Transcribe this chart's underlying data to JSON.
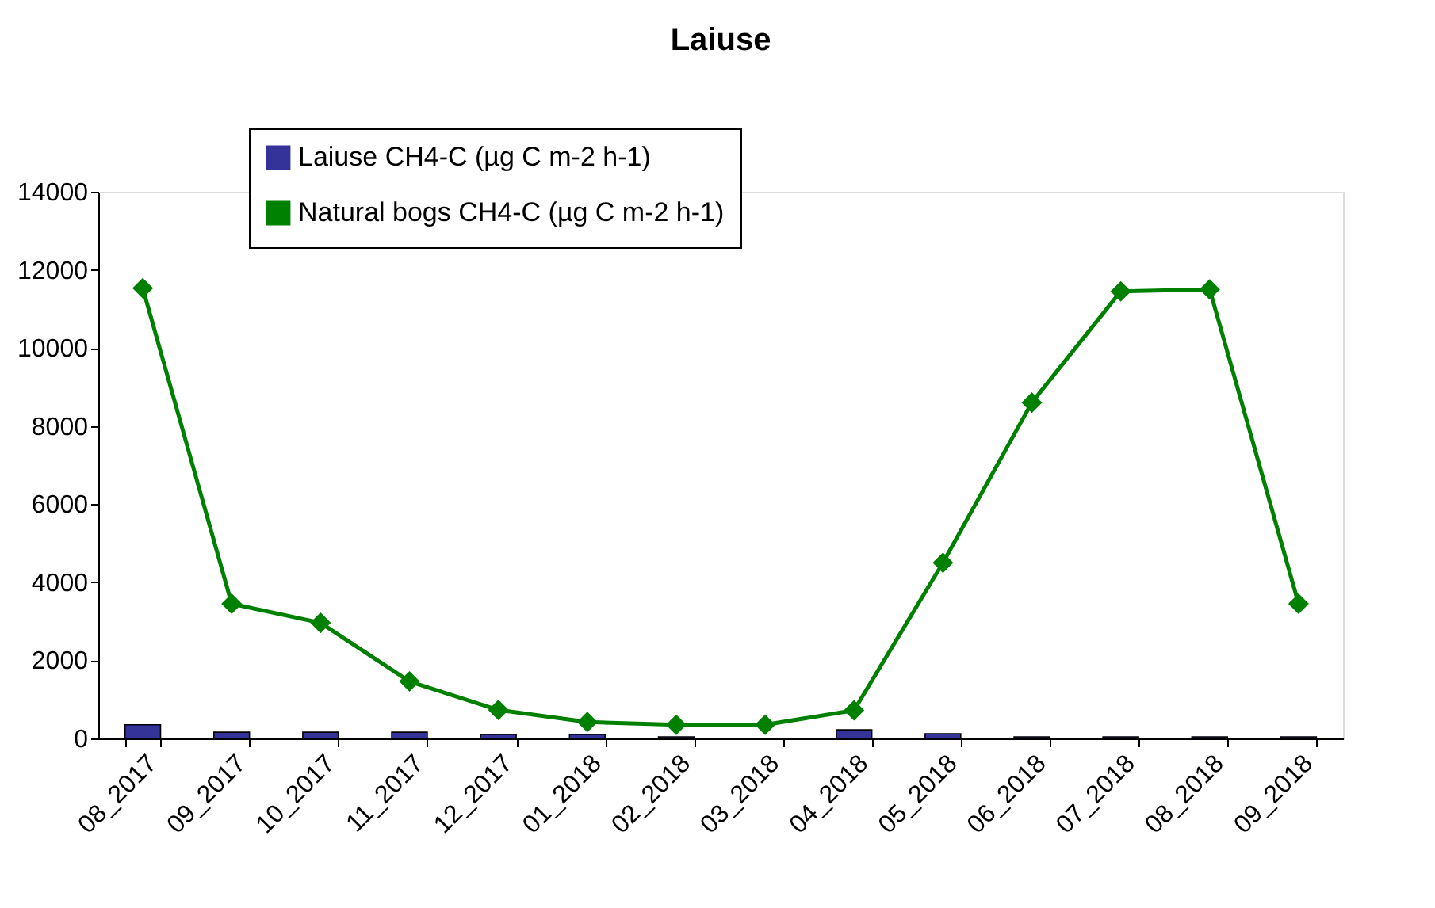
{
  "chart_data": {
    "type": "bar",
    "title": "Laiuse",
    "categories": [
      "08_2017",
      "09_2017",
      "10_2017",
      "11_2017",
      "12_2017",
      "01_2018",
      "02_2018",
      "03_2018",
      "04_2018",
      "05_2018",
      "06_2018",
      "07_2018",
      "08_2018",
      "09_2018"
    ],
    "series": [
      {
        "name": "Laiuse CH4-C (µg C m-2 h-1)",
        "color": "#333399",
        "values": [
          350,
          160,
          160,
          160,
          100,
          100,
          40,
          null,
          220,
          120,
          40,
          40,
          40,
          40
        ]
      },
      {
        "name": "Natural bogs CH4-C (µg C m-2 h-1)",
        "type": "line",
        "color": "#008000",
        "marker": "diamond",
        "values": [
          11530,
          3450,
          2960,
          1460,
          730,
          420,
          350,
          350,
          720,
          4500,
          8600,
          11450,
          11500,
          3450
        ]
      }
    ],
    "ylim": [
      0,
      14000
    ],
    "yticks": [
      0,
      2000,
      4000,
      6000,
      8000,
      10000,
      12000,
      14000
    ],
    "grid": false,
    "legend": "top left"
  }
}
